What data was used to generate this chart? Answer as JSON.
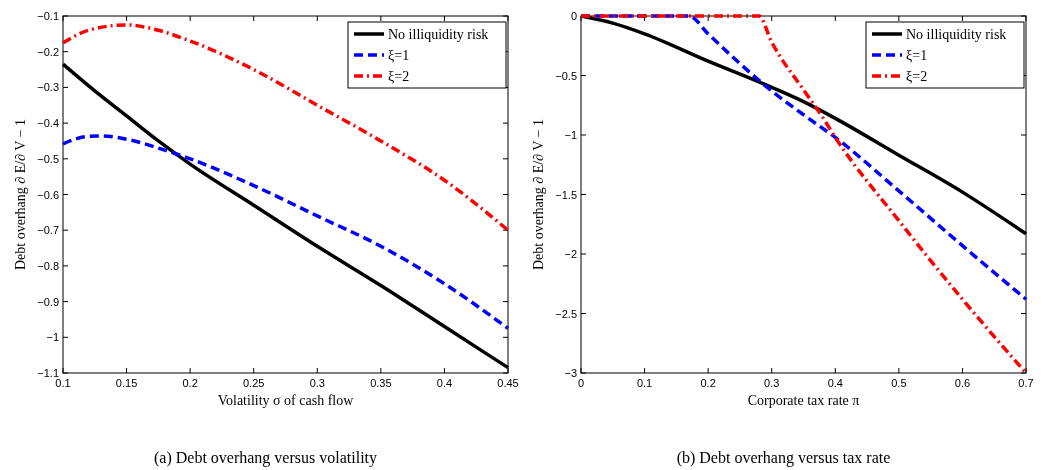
{
  "chart_data": [
    {
      "type": "line",
      "xlabel": "Volatility σ of cash flow",
      "ylabel": "Debt overhang ∂ E/∂ V − 1",
      "xlim": [
        0.1,
        0.45
      ],
      "ylim": [
        -1.1,
        -0.1
      ],
      "xticks": [
        0.1,
        0.15,
        0.2,
        0.25,
        0.3,
        0.35,
        0.4,
        0.45
      ],
      "yticks": [
        -1.1,
        -1,
        -0.9,
        -0.8,
        -0.7,
        -0.6,
        -0.5,
        -0.4,
        -0.3,
        -0.2,
        -0.1
      ],
      "legend": "top right",
      "annotations": [
        "(a)  Debt overhang versus volatility"
      ],
      "series": [
        {
          "name": "No illiquidity risk",
          "color": "#000000",
          "line_style": "solid",
          "x": [
            0.1,
            0.125,
            0.15,
            0.175,
            0.2,
            0.25,
            0.3,
            0.35,
            0.4,
            0.45
          ],
          "values": [
            -0.235,
            -0.31,
            -0.38,
            -0.45,
            -0.515,
            -0.63,
            -0.745,
            -0.855,
            -0.97,
            -1.085
          ]
        },
        {
          "name": "ξ=1",
          "color": "#0000ff",
          "line_style": "dashed",
          "x": [
            0.1,
            0.12,
            0.13,
            0.15,
            0.175,
            0.2,
            0.25,
            0.3,
            0.35,
            0.4,
            0.45
          ],
          "values": [
            -0.458,
            -0.437,
            -0.436,
            -0.445,
            -0.47,
            -0.5,
            -0.575,
            -0.66,
            -0.745,
            -0.85,
            -0.975
          ]
        },
        {
          "name": "ξ=2",
          "color": "#ff0000",
          "line_style": "dashdot",
          "x": [
            0.1,
            0.12,
            0.15,
            0.175,
            0.2,
            0.25,
            0.3,
            0.35,
            0.4,
            0.45
          ],
          "values": [
            -0.175,
            -0.14,
            -0.125,
            -0.14,
            -0.17,
            -0.25,
            -0.35,
            -0.45,
            -0.56,
            -0.7
          ]
        }
      ]
    },
    {
      "type": "line",
      "xlabel": "Corporate tax rate π",
      "ylabel": "Debt overhang ∂ E/∂ V − 1",
      "xlim": [
        0,
        0.7
      ],
      "ylim": [
        -3,
        0
      ],
      "xticks": [
        0,
        0.1,
        0.2,
        0.3,
        0.4,
        0.5,
        0.6,
        0.7
      ],
      "yticks": [
        -3,
        -2.5,
        -2,
        -1.5,
        -1,
        -0.5,
        0
      ],
      "legend": "top right",
      "annotations": [
        "(b)  Debt overhang versus tax rate"
      ],
      "series": [
        {
          "name": "No illiquidity risk",
          "color": "#000000",
          "line_style": "solid",
          "x": [
            0,
            0.05,
            0.1,
            0.2,
            0.3,
            0.35,
            0.4,
            0.5,
            0.6,
            0.7
          ],
          "values": [
            0,
            -0.06,
            -0.15,
            -0.38,
            -0.6,
            -0.72,
            -0.86,
            -1.17,
            -1.48,
            -1.83
          ]
        },
        {
          "name": "ξ=1",
          "color": "#0000ff",
          "line_style": "dashed",
          "x": [
            0,
            0.17,
            0.2,
            0.25,
            0.3,
            0.35,
            0.4,
            0.5,
            0.6,
            0.7
          ],
          "values": [
            0,
            0,
            -0.15,
            -0.4,
            -0.63,
            -0.83,
            -1.02,
            -1.47,
            -1.93,
            -2.38
          ]
        },
        {
          "name": "ξ=2",
          "color": "#ff0000",
          "line_style": "dashdot",
          "x": [
            0,
            0.28,
            0.3,
            0.35,
            0.38,
            0.4,
            0.5,
            0.6,
            0.7
          ],
          "values": [
            0,
            0,
            -0.22,
            -0.62,
            -0.85,
            -1.02,
            -1.72,
            -2.38,
            -3
          ]
        }
      ]
    }
  ]
}
